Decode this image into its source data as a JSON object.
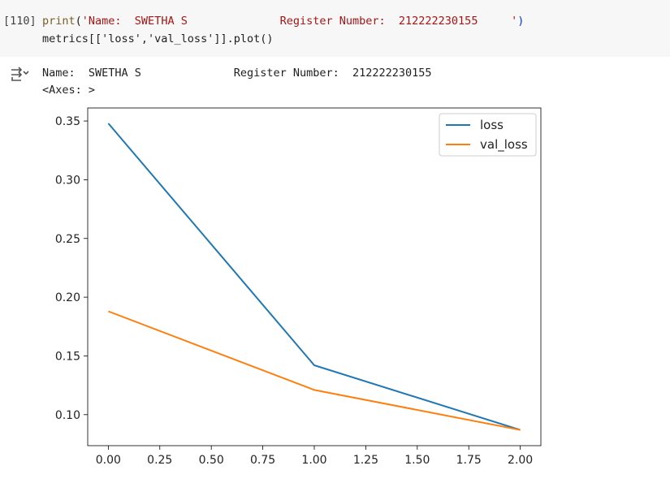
{
  "cell": {
    "execution_count": "[110]",
    "code_line1": {
      "fn": "print",
      "open": "(",
      "str": "'Name:  SWETHA S              Register Number:  212222230155     '",
      "close": ")"
    },
    "code_line2": "metrics[['loss','val_loss']].plot()"
  },
  "output": {
    "icon": "output-toggle-icon",
    "line1": "Name:  SWETHA S              Register Number:  212222230155",
    "line2": "<Axes: >"
  },
  "chart_data": {
    "type": "line",
    "title": "",
    "xlabel": "",
    "ylabel": "",
    "x": [
      0,
      1,
      2
    ],
    "xlim": [
      -0.1,
      2.1
    ],
    "ylim": [
      0.0736,
      0.3611
    ],
    "xticks": [
      "0.00",
      "0.25",
      "0.50",
      "0.75",
      "1.00",
      "1.25",
      "1.50",
      "1.75",
      "2.00"
    ],
    "yticks": [
      "0.10",
      "0.15",
      "0.20",
      "0.25",
      "0.30",
      "0.35"
    ],
    "grid": false,
    "legend": "top-right",
    "series": [
      {
        "name": "loss",
        "color": "#1f77b4",
        "values": [
          0.348,
          0.142,
          0.087
        ]
      },
      {
        "name": "val_loss",
        "color": "#ff7f0e",
        "values": [
          0.188,
          0.121,
          0.087
        ]
      }
    ]
  }
}
